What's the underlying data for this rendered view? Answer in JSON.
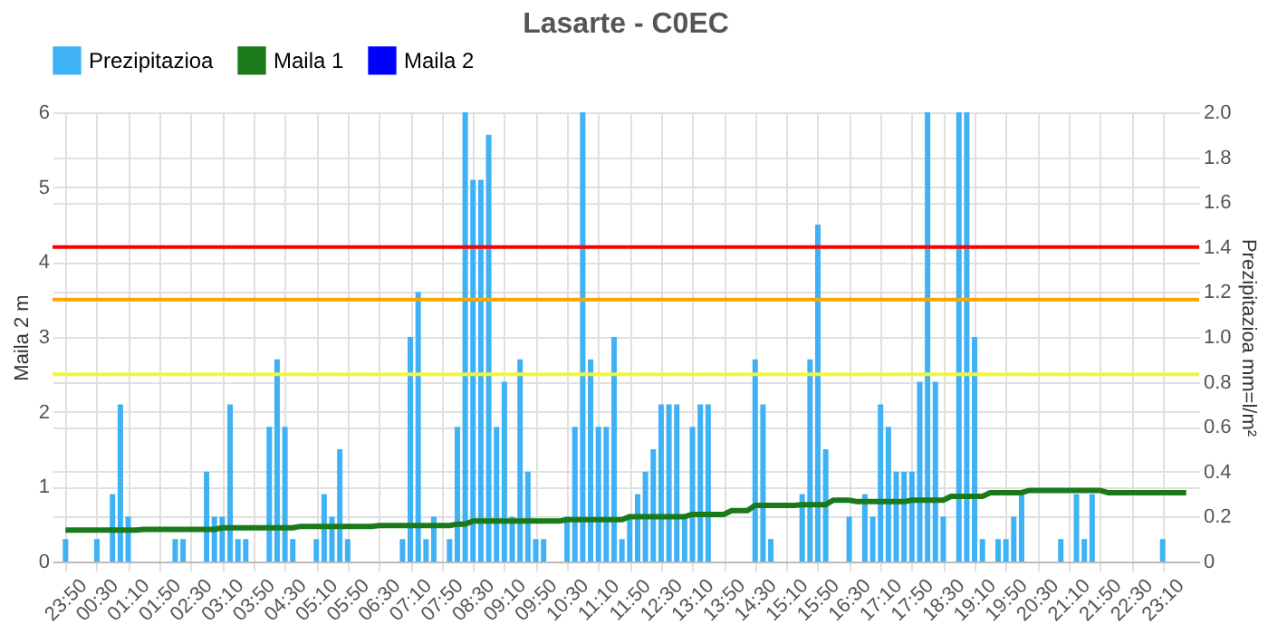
{
  "chart_data": {
    "type": "bar",
    "title": "Lasarte - C0EC",
    "ylabel": "Maila 2 m",
    "y2label": "Prezipitazioa mm=l/m²",
    "categories": [
      "23:50",
      null,
      null,
      null,
      "00:30",
      null,
      null,
      null,
      "01:10",
      null,
      null,
      null,
      "01:50",
      null,
      null,
      null,
      "02:30",
      null,
      null,
      null,
      "03:10",
      null,
      null,
      null,
      "03:50",
      null,
      null,
      null,
      "04:30",
      null,
      null,
      null,
      "05:10",
      null,
      null,
      null,
      "05:50",
      null,
      null,
      null,
      "06:30",
      null,
      null,
      null,
      "07:10",
      null,
      null,
      null,
      "07:50",
      null,
      null,
      null,
      "08:30",
      null,
      null,
      null,
      "09:10",
      null,
      null,
      null,
      "09:50",
      null,
      null,
      null,
      "10:30",
      null,
      null,
      null,
      "11:10",
      null,
      null,
      null,
      "11:50",
      null,
      null,
      null,
      "12:30",
      null,
      null,
      null,
      "13:10",
      null,
      null,
      null,
      "13:50",
      null,
      null,
      null,
      "14:30",
      null,
      null,
      null,
      "15:10",
      null,
      null,
      null,
      "15:50",
      null,
      null,
      null,
      "16:30",
      null,
      null,
      null,
      "17:10",
      null,
      null,
      null,
      "17:50",
      null,
      null,
      null,
      "18:30",
      null,
      null,
      null,
      "19:10",
      null,
      null,
      null,
      "19:50",
      null,
      null,
      null,
      "20:30",
      null,
      null,
      null,
      "21:10",
      null,
      null,
      null,
      "21:50",
      null,
      null,
      null,
      "22:30",
      null,
      null,
      null,
      "23:10",
      null,
      null,
      null
    ],
    "series": [
      {
        "name": "Prezipitazioa",
        "axis": "y2",
        "color": "#3fb1f5",
        "values": [
          0.1,
          null,
          null,
          null,
          0.1,
          null,
          0.3,
          0.7,
          0.2,
          null,
          null,
          null,
          null,
          null,
          0.1,
          0.1,
          null,
          null,
          0.4,
          0.2,
          0.2,
          0.7,
          0.1,
          0.1,
          null,
          null,
          0.6,
          0.9,
          0.6,
          0.1,
          null,
          null,
          0.1,
          0.3,
          0.2,
          0.5,
          0.1,
          null,
          null,
          null,
          null,
          null,
          null,
          0.1,
          1.0,
          1.2,
          0.1,
          0.2,
          null,
          0.1,
          0.6,
          2.0,
          1.7,
          1.7,
          1.9,
          0.6,
          0.8,
          0.2,
          0.9,
          0.4,
          0.1,
          0.1,
          null,
          null,
          0.2,
          0.6,
          2.0,
          0.9,
          0.6,
          0.6,
          1.0,
          0.1,
          0.2,
          0.3,
          0.4,
          0.5,
          0.7,
          0.7,
          0.7,
          0.2,
          0.6,
          0.7,
          0.7,
          null,
          null,
          null,
          null,
          null,
          0.9,
          0.7,
          0.1,
          null,
          null,
          null,
          0.3,
          0.9,
          1.5,
          0.5,
          null,
          null,
          0.2,
          null,
          0.3,
          0.2,
          0.7,
          0.6,
          0.4,
          0.4,
          0.4,
          0.8,
          2.0,
          0.8,
          0.2,
          null,
          2.0,
          2.0,
          1.0,
          0.1,
          null,
          0.1,
          0.1,
          0.2,
          0.3,
          null,
          null,
          null,
          null,
          0.1,
          null,
          0.3,
          0.1,
          0.3,
          null,
          null,
          null,
          null,
          null,
          null,
          null,
          null,
          0.1,
          null,
          null,
          null
        ]
      },
      {
        "name": "Maila 1",
        "type": "line",
        "color": "#1a7a1a",
        "values": [
          0.42,
          0.42,
          0.42,
          0.42,
          0.42,
          0.42,
          0.42,
          0.42,
          0.42,
          0.42,
          0.43,
          0.43,
          0.43,
          0.43,
          0.43,
          0.43,
          0.43,
          0.43,
          0.43,
          0.43,
          0.45,
          0.45,
          0.45,
          0.45,
          0.45,
          0.45,
          0.45,
          0.45,
          0.45,
          0.45,
          0.47,
          0.47,
          0.47,
          0.47,
          0.47,
          0.47,
          0.47,
          0.47,
          0.47,
          0.47,
          0.48,
          0.48,
          0.48,
          0.48,
          0.48,
          0.48,
          0.48,
          0.48,
          0.48,
          0.48,
          0.5,
          0.5,
          0.54,
          0.54,
          0.54,
          0.54,
          0.54,
          0.54,
          0.54,
          0.54,
          0.54,
          0.54,
          0.54,
          0.54,
          0.56,
          0.56,
          0.56,
          0.56,
          0.56,
          0.56,
          0.56,
          0.56,
          0.6,
          0.6,
          0.6,
          0.6,
          0.6,
          0.6,
          0.6,
          0.6,
          0.63,
          0.63,
          0.63,
          0.63,
          0.63,
          0.68,
          0.68,
          0.68,
          0.75,
          0.75,
          0.75,
          0.75,
          0.75,
          0.75,
          0.76,
          0.76,
          0.76,
          0.76,
          0.82,
          0.82,
          0.82,
          0.8,
          0.8,
          0.8,
          0.8,
          0.8,
          0.8,
          0.8,
          0.82,
          0.82,
          0.82,
          0.82,
          0.82,
          0.87,
          0.87,
          0.87,
          0.87,
          0.87,
          0.92,
          0.92,
          0.92,
          0.92,
          0.92,
          0.95,
          0.95,
          0.95,
          0.95,
          0.95,
          0.95,
          0.95,
          0.95,
          0.95,
          0.95,
          0.92,
          0.92,
          0.92,
          0.92,
          0.92,
          0.92,
          0.92,
          0.92,
          0.92,
          0.92,
          0.92
        ]
      },
      {
        "name": "Maila 2",
        "type": "line",
        "color": "#0000ff",
        "values": [
          null,
          null,
          null,
          null,
          null,
          null,
          null,
          null,
          null,
          null,
          null,
          null,
          null,
          null,
          null,
          null,
          null,
          null,
          null,
          null,
          null,
          null,
          null,
          null,
          null,
          null,
          null,
          null,
          null,
          null,
          null,
          null,
          null,
          null,
          null,
          null,
          null,
          null,
          null,
          null,
          null,
          null,
          null,
          null,
          null,
          null,
          null,
          null,
          null,
          null,
          null,
          null,
          null,
          null,
          null,
          null,
          null,
          null,
          null,
          null,
          null,
          null,
          null,
          null,
          null,
          null,
          null,
          null,
          null,
          null,
          null,
          null,
          null,
          null,
          null,
          null,
          null,
          null,
          null,
          null,
          null,
          null,
          null,
          null,
          null,
          null,
          null,
          null,
          null,
          null,
          null,
          null,
          null,
          null,
          null,
          null,
          null,
          null,
          null,
          null,
          null,
          null,
          null,
          null,
          null,
          null,
          null,
          null,
          null,
          null,
          null,
          null,
          null,
          null,
          null,
          null,
          null,
          null,
          null,
          null,
          null,
          null,
          null,
          null,
          null,
          null,
          null,
          null,
          null,
          null,
          null,
          null,
          null,
          null,
          null,
          null,
          null,
          null,
          null,
          null,
          null,
          null,
          null,
          null
        ]
      }
    ],
    "ylim": [
      0,
      6
    ],
    "yticks": [
      0,
      1,
      2,
      3,
      4,
      5,
      6
    ],
    "y2lim": [
      0,
      2
    ],
    "y2ticks": [
      0,
      0.2,
      0.4,
      0.6,
      0.8,
      {
        "value": 1,
        "label": "1.0"
      },
      1.2,
      1.4,
      1.6,
      1.8,
      {
        "value": 2,
        "label": "2.0"
      }
    ],
    "ref_lines": [
      {
        "axis": "y",
        "value": 4.2,
        "color": "#ff0000"
      },
      {
        "axis": "y",
        "value": 3.5,
        "color": "#ffa500"
      },
      {
        "axis": "y",
        "value": 2.5,
        "color": "#f5f53a"
      }
    ],
    "grid": true,
    "legend": "top"
  }
}
